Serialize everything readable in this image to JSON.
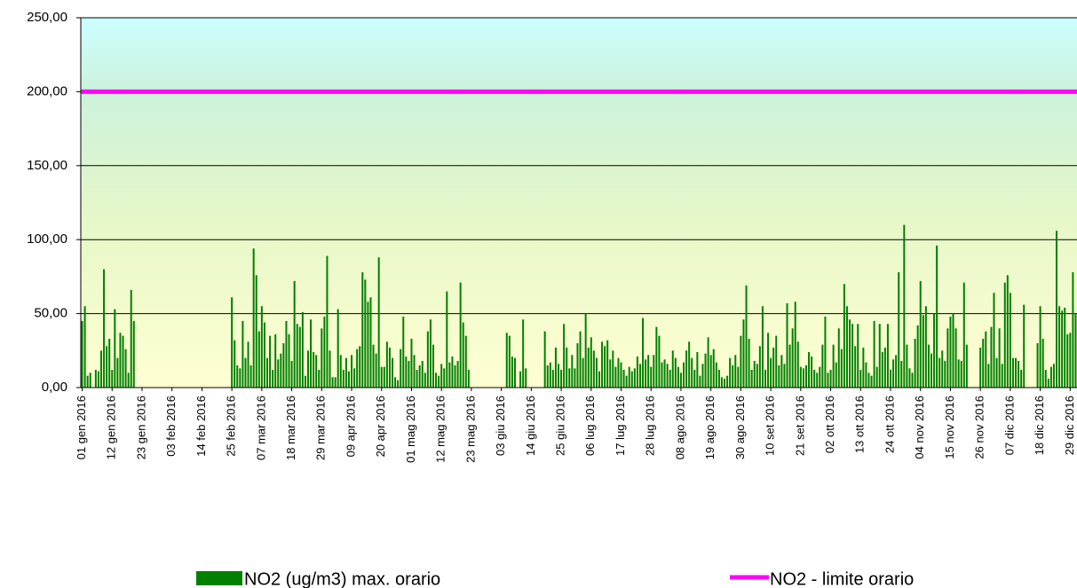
{
  "chart_data": {
    "type": "bar",
    "categories": [
      "01 gen 2016",
      null,
      null,
      null,
      null,
      null,
      null,
      null,
      null,
      null,
      null,
      "12 gen 2016",
      null,
      null,
      null,
      null,
      null,
      null,
      null,
      null,
      null,
      null,
      "23 gen 2016",
      null,
      null,
      null,
      null,
      null,
      null,
      null,
      null,
      null,
      null,
      "03 feb 2016",
      null,
      null,
      null,
      null,
      null,
      null,
      null,
      null,
      null,
      null,
      "14 feb 2016",
      null,
      null,
      null,
      null,
      null,
      null,
      null,
      null,
      null,
      null,
      "25 feb 2016",
      null,
      null,
      null,
      null,
      null,
      null,
      null,
      null,
      null,
      null,
      "07 mar 2016",
      null,
      null,
      null,
      null,
      null,
      null,
      null,
      null,
      null,
      null,
      "18 mar 2016",
      null,
      null,
      null,
      null,
      null,
      null,
      null,
      null,
      null,
      null,
      "29 mar 2016",
      null,
      null,
      null,
      null,
      null,
      null,
      null,
      null,
      null,
      null,
      "09 apr 2016",
      null,
      null,
      null,
      null,
      null,
      null,
      null,
      null,
      null,
      null,
      "20 apr 2016",
      null,
      null,
      null,
      null,
      null,
      null,
      null,
      null,
      null,
      null,
      "01 mag 2016",
      null,
      null,
      null,
      null,
      null,
      null,
      null,
      null,
      null,
      null,
      "12 mag 2016",
      null,
      null,
      null,
      null,
      null,
      null,
      null,
      null,
      null,
      null,
      "23 mag 2016",
      null,
      null,
      null,
      null,
      null,
      null,
      null,
      null,
      null,
      null,
      "03 giu 2016",
      null,
      null,
      null,
      null,
      null,
      null,
      null,
      null,
      null,
      null,
      "14 giu 2016",
      null,
      null,
      null,
      null,
      null,
      null,
      null,
      null,
      null,
      null,
      "25 giu 2016",
      null,
      null,
      null,
      null,
      null,
      null,
      null,
      null,
      null,
      null,
      "06 lug 2016",
      null,
      null,
      null,
      null,
      null,
      null,
      null,
      null,
      null,
      null,
      "17 lug 2016",
      null,
      null,
      null,
      null,
      null,
      null,
      null,
      null,
      null,
      null,
      "28 lug 2016",
      null,
      null,
      null,
      null,
      null,
      null,
      null,
      null,
      null,
      null,
      "08 ago 2016",
      null,
      null,
      null,
      null,
      null,
      null,
      null,
      null,
      null,
      null,
      "19 ago 2016",
      null,
      null,
      null,
      null,
      null,
      null,
      null,
      null,
      null,
      null,
      "30 ago 2016",
      null,
      null,
      null,
      null,
      null,
      null,
      null,
      null,
      null,
      null,
      "10 set 2016",
      null,
      null,
      null,
      null,
      null,
      null,
      null,
      null,
      null,
      null,
      "21 set 2016",
      null,
      null,
      null,
      null,
      null,
      null,
      null,
      null,
      null,
      null,
      "02 ott 2016",
      null,
      null,
      null,
      null,
      null,
      null,
      null,
      null,
      null,
      null,
      "13 ott 2016",
      null,
      null,
      null,
      null,
      null,
      null,
      null,
      null,
      null,
      null,
      "24 ott 2016",
      null,
      null,
      null,
      null,
      null,
      null,
      null,
      null,
      null,
      null,
      "04 nov 2016",
      null,
      null,
      null,
      null,
      null,
      null,
      null,
      null,
      null,
      null,
      "15 nov 2016",
      null,
      null,
      null,
      null,
      null,
      null,
      null,
      null,
      null,
      null,
      "26 nov 2016",
      null,
      null,
      null,
      null,
      null,
      null,
      null,
      null,
      null,
      null,
      "07 dic 2016",
      null,
      null,
      null,
      null,
      null,
      null,
      null,
      null,
      null,
      null,
      "18 dic 2016",
      null,
      null,
      null,
      null,
      null,
      null,
      null,
      null,
      null,
      null,
      "29 dic 2016",
      null,
      null
    ],
    "series": [
      {
        "name": "NO2 (ug/m3) max. orario",
        "color": "#008000",
        "values": [
          45,
          55,
          8,
          10,
          0,
          12,
          11,
          25,
          80,
          28,
          33,
          12,
          53,
          20,
          37,
          35,
          26,
          10,
          66,
          45,
          0,
          0,
          0,
          0,
          0,
          0,
          0,
          0,
          0,
          0,
          0,
          0,
          0,
          0,
          0,
          0,
          0,
          0,
          0,
          0,
          0,
          0,
          0,
          0,
          0,
          0,
          0,
          0,
          0,
          0,
          0,
          0,
          0,
          0,
          0,
          61,
          32,
          15,
          13,
          45,
          20,
          31,
          15,
          94,
          76,
          38,
          55,
          44,
          20,
          35,
          12,
          36,
          19,
          23,
          30,
          45,
          36,
          18,
          72,
          43,
          41,
          51,
          8,
          25,
          46,
          24,
          22,
          12,
          40,
          48,
          89,
          25,
          7,
          7,
          53,
          22,
          12,
          20,
          11,
          22,
          13,
          26,
          28,
          78,
          73,
          58,
          61,
          29,
          23,
          88,
          14,
          14,
          31,
          27,
          20,
          7,
          5,
          26,
          48,
          21,
          18,
          33,
          22,
          12,
          15,
          18,
          10,
          38,
          46,
          29,
          10,
          8,
          16,
          13,
          65,
          17,
          21,
          15,
          18,
          71,
          44,
          35,
          12,
          0,
          0,
          0,
          0,
          0,
          0,
          0,
          0,
          0,
          0,
          0,
          0,
          0,
          37,
          35,
          21,
          20,
          0,
          11,
          46,
          13,
          0,
          0,
          0,
          0,
          0,
          0,
          38,
          15,
          17,
          12,
          27,
          16,
          12,
          43,
          27,
          13,
          22,
          13,
          30,
          38,
          20,
          50,
          27,
          34,
          25,
          20,
          11,
          31,
          28,
          32,
          19,
          25,
          14,
          20,
          17,
          12,
          8,
          14,
          11,
          13,
          21,
          16,
          47,
          19,
          22,
          14,
          22,
          41,
          35,
          17,
          19,
          16,
          12,
          25,
          20,
          14,
          10,
          17,
          25,
          31,
          20,
          12,
          24,
          8,
          16,
          23,
          34,
          22,
          26,
          17,
          12,
          7,
          6,
          8,
          20,
          15,
          22,
          14,
          35,
          46,
          69,
          33,
          12,
          18,
          16,
          28,
          55,
          12,
          37,
          20,
          27,
          35,
          15,
          22,
          16,
          57,
          29,
          40,
          58,
          31,
          14,
          13,
          15,
          24,
          21,
          12,
          10,
          14,
          29,
          48,
          10,
          12,
          29,
          17,
          40,
          26,
          70,
          55,
          46,
          43,
          28,
          43,
          12,
          27,
          17,
          10,
          8,
          45,
          14,
          43,
          24,
          27,
          43,
          12,
          19,
          22,
          78,
          18,
          110,
          29,
          13,
          10,
          33,
          42,
          72,
          49,
          55,
          29,
          23,
          50,
          96,
          20,
          25,
          18,
          40,
          48,
          50,
          40,
          19,
          18,
          71,
          29,
          0,
          0,
          0,
          0,
          27,
          33,
          38,
          16,
          41,
          64,
          20,
          40,
          16,
          71,
          76,
          64,
          20,
          20,
          18,
          12,
          56,
          0,
          0,
          0,
          0,
          30,
          55,
          33,
          12,
          6,
          14,
          16,
          106,
          55,
          52,
          54,
          36,
          37,
          78,
          50
        ]
      }
    ],
    "limit": {
      "name": "NO2 - limite orario",
      "color": "#ff00ff",
      "value": 200
    },
    "ylim": [
      0,
      250
    ],
    "yticks": [
      {
        "value": 0,
        "label": "0,00"
      },
      {
        "value": 50,
        "label": "50,00"
      },
      {
        "value": 100,
        "label": "100,00"
      },
      {
        "value": 150,
        "label": "150,00"
      },
      {
        "value": 200,
        "label": "200,00"
      },
      {
        "value": 250,
        "label": "250,00"
      }
    ],
    "grid": true
  }
}
